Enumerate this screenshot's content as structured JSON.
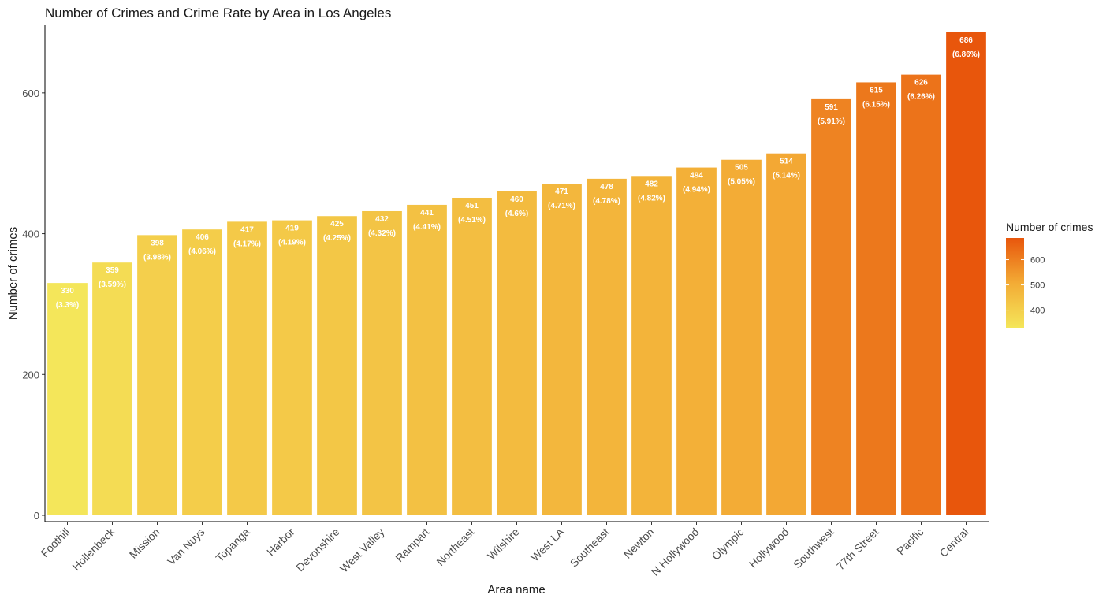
{
  "chart_data": {
    "type": "bar",
    "title": "Number of Crimes and Crime Rate by Area in Los Angeles",
    "xlabel": "Area name",
    "ylabel": "Number of crimes",
    "ylim": [
      0,
      686
    ],
    "yticks": [
      0,
      200,
      400,
      600
    ],
    "grid": false,
    "legend_position": "right",
    "categories": [
      "Foothill",
      "Hollenbeck",
      "Mission",
      "Van Nuys",
      "Topanga",
      "Harbor",
      "Devonshire",
      "West Valley",
      "Rampart",
      "Northeast",
      "Wilshire",
      "West LA",
      "Southeast",
      "Newton",
      "N Hollywood",
      "Olympic",
      "Hollywood",
      "Southwest",
      "77th Street",
      "Pacific",
      "Central"
    ],
    "values": [
      330,
      359,
      398,
      406,
      417,
      419,
      425,
      432,
      441,
      451,
      460,
      471,
      478,
      482,
      494,
      505,
      514,
      591,
      615,
      626,
      686
    ],
    "value_labels": [
      "330",
      "359",
      "398",
      "406",
      "417",
      "419",
      "425",
      "432",
      "441",
      "451",
      "460",
      "471",
      "478",
      "482",
      "494",
      "505",
      "514",
      "591",
      "615",
      "626",
      "686"
    ],
    "rate_labels": [
      "(3.3%)",
      "(3.59%)",
      "(3.98%)",
      "(4.06%)",
      "(4.17%)",
      "(4.19%)",
      "(4.25%)",
      "(4.32%)",
      "(4.41%)",
      "(4.51%)",
      "(4.6%)",
      "(4.71%)",
      "(4.78%)",
      "(4.82%)",
      "(4.94%)",
      "(5.05%)",
      "(5.14%)",
      "(5.91%)",
      "(6.15%)",
      "(6.26%)",
      "(6.86%)"
    ],
    "legend": {
      "title": "Number of crimes",
      "ticks": [
        400,
        500,
        600
      ],
      "tick_labels": [
        "400",
        "500",
        "600"
      ],
      "range": [
        330,
        686
      ]
    },
    "colors": {
      "low": "#f4e65a",
      "mid": "#f3ab35",
      "high": "#e8560c"
    }
  }
}
